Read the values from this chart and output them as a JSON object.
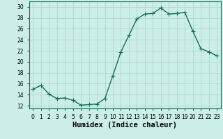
{
  "x": [
    0,
    1,
    2,
    3,
    4,
    5,
    6,
    7,
    8,
    9,
    10,
    11,
    12,
    13,
    14,
    15,
    16,
    17,
    18,
    19,
    20,
    21,
    22,
    23
  ],
  "y": [
    15.0,
    15.7,
    14.1,
    13.3,
    13.4,
    13.0,
    12.1,
    12.2,
    12.3,
    13.3,
    17.5,
    21.8,
    24.8,
    27.8,
    28.7,
    28.8,
    29.8,
    28.7,
    28.8,
    29.0,
    25.6,
    22.4,
    21.8,
    21.1
  ],
  "line_color": "#1a6b5a",
  "marker": "+",
  "markersize": 4,
  "linewidth": 1.0,
  "xlabel": "Humidex (Indice chaleur)",
  "bg_color": "#cceee8",
  "grid_color": "#aad8d0",
  "xlim": [
    -0.5,
    23.5
  ],
  "ylim": [
    11.5,
    31
  ],
  "yticks": [
    12,
    14,
    16,
    18,
    20,
    22,
    24,
    26,
    28,
    30
  ],
  "xticks": [
    0,
    1,
    2,
    3,
    4,
    5,
    6,
    7,
    8,
    9,
    10,
    11,
    12,
    13,
    14,
    15,
    16,
    17,
    18,
    19,
    20,
    21,
    22,
    23
  ],
  "xtick_labels": [
    "0",
    "1",
    "2",
    "3",
    "4",
    "5",
    "6",
    "7",
    "8",
    "9",
    "10",
    "11",
    "12",
    "13",
    "14",
    "15",
    "16",
    "17",
    "18",
    "19",
    "20",
    "21",
    "22",
    "23"
  ],
  "tick_fontsize": 5.5,
  "xlabel_fontsize": 7.5
}
